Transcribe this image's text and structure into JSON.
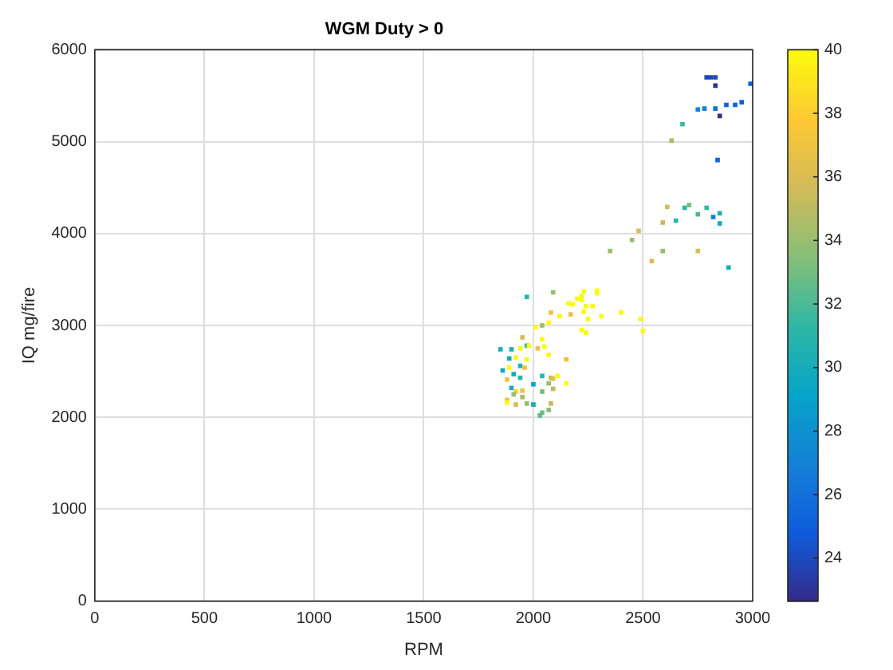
{
  "chart_data": {
    "type": "scatter",
    "title": "WGM Duty > 0",
    "xlabel": "RPM",
    "ylabel": "IQ mg/fire",
    "xlim": [
      0,
      3000
    ],
    "xticks": [
      0,
      500,
      1000,
      1500,
      2000,
      2500,
      3000
    ],
    "ylim": [
      0,
      6000
    ],
    "yticks": [
      0,
      1000,
      2000,
      3000,
      4000,
      5000,
      6000
    ],
    "clim": [
      22.65,
      40
    ],
    "cticks": [
      24,
      26,
      28,
      30,
      32,
      34,
      36,
      38,
      40
    ],
    "grid": true,
    "marker": "square",
    "legend": false,
    "x": [
      2790,
      2810,
      2830,
      2830,
      2990,
      2950,
      2920,
      2880,
      2850,
      2830,
      2780,
      2750,
      2680,
      2630,
      2840,
      2610,
      2590,
      2690,
      2710,
      2650,
      2750,
      2790,
      2850,
      2820,
      2850,
      2480,
      2450,
      2350,
      2590,
      2750,
      2540,
      2890,
      1970,
      2090,
      2160,
      2180,
      2200,
      2220,
      2220,
      2230,
      2290,
      2290,
      2240,
      2270,
      2230,
      2080,
      2170,
      2120,
      2310,
      2400,
      2250,
      2490,
      2500,
      2220,
      2240,
      2070,
      2010,
      2040,
      2040,
      1950,
      1940,
      1970,
      1980,
      2050,
      2020,
      2070,
      2150,
      1850,
      1900,
      1890,
      1920,
      1970,
      1940,
      1860,
      1890,
      1960,
      1910,
      1940,
      1880,
      2040,
      2080,
      2090,
      2110,
      2150,
      2070,
      2000,
      1900,
      2090,
      1920,
      1950,
      2040,
      1910,
      1950,
      1880,
      1880,
      1920,
      1970,
      2000,
      2080,
      2070,
      2040,
      2030
    ],
    "values": [
      5700,
      5700,
      5700,
      5610,
      5630,
      5430,
      5400,
      5400,
      5280,
      5360,
      5360,
      5350,
      5190,
      5010,
      4800,
      4290,
      4120,
      4280,
      4310,
      4140,
      4210,
      4280,
      4220,
      4180,
      4110,
      4030,
      3930,
      3810,
      3810,
      3810,
      3700,
      3630,
      3310,
      3360,
      3240,
      3230,
      3290,
      3280,
      3320,
      3370,
      3350,
      3380,
      3210,
      3210,
      3150,
      3140,
      3120,
      3100,
      3100,
      3140,
      3070,
      3070,
      2940,
      2950,
      2920,
      3030,
      2980,
      3000,
      2850,
      2870,
      2750,
      2780,
      2780,
      2770,
      2750,
      2680,
      2630,
      2740,
      2740,
      2640,
      2650,
      2630,
      2560,
      2510,
      2540,
      2540,
      2470,
      2430,
      2410,
      2450,
      2430,
      2420,
      2450,
      2370,
      2370,
      2360,
      2320,
      2310,
      2280,
      2290,
      2280,
      2250,
      2220,
      2190,
      2160,
      2140,
      2150,
      2140,
      2150,
      2080,
      2050,
      2020
    ],
    "cvalues": [
      24,
      24,
      24,
      23,
      25,
      25,
      25,
      25,
      23,
      26,
      27,
      27,
      31.5,
      34.5,
      25,
      36,
      35.5,
      31,
      33,
      31,
      32,
      31.5,
      30.5,
      27,
      30,
      36,
      34,
      34,
      34,
      36,
      36,
      30,
      31,
      34,
      40,
      40,
      40,
      40,
      40,
      40,
      40,
      40,
      40,
      40,
      40,
      37,
      37,
      40,
      40,
      40,
      40,
      40,
      40,
      40,
      40,
      40,
      40,
      34,
      40,
      36,
      40,
      31.5,
      40,
      40,
      37,
      40,
      37,
      30.5,
      30.5,
      30,
      40,
      40,
      30.5,
      29.5,
      40,
      37,
      30,
      31,
      37,
      31,
      35,
      36.5,
      40,
      40,
      34,
      29.5,
      30,
      35,
      38,
      37,
      33,
      34,
      34.5,
      37,
      40,
      36,
      34,
      30,
      35.5,
      33.5,
      33,
      32.5
    ]
  }
}
